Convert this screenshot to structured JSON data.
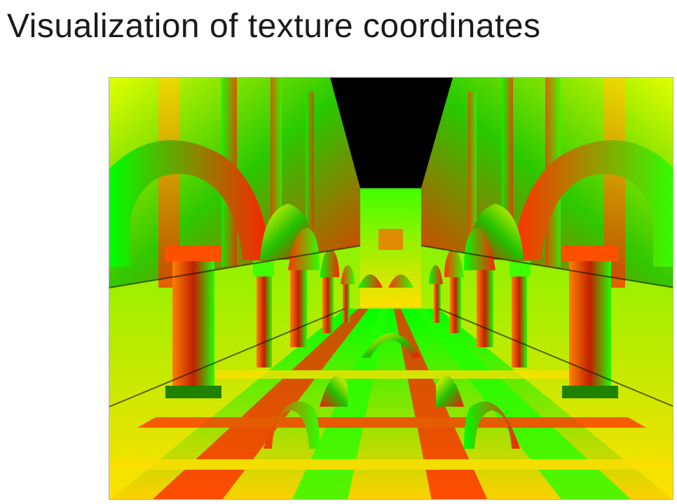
{
  "slide": {
    "title": "Visualization of texture coordinates"
  },
  "figure": {
    "description": "Rendered interior of an arcaded atrium (Sponza-like scene) where each surface is shaded by its UV texture coordinates: red = u, green = v, yellow where both are high.",
    "colors": {
      "u_channel": "#ff0000",
      "v_channel": "#00ff00",
      "both": "#ffff00",
      "background": "#000000"
    }
  }
}
